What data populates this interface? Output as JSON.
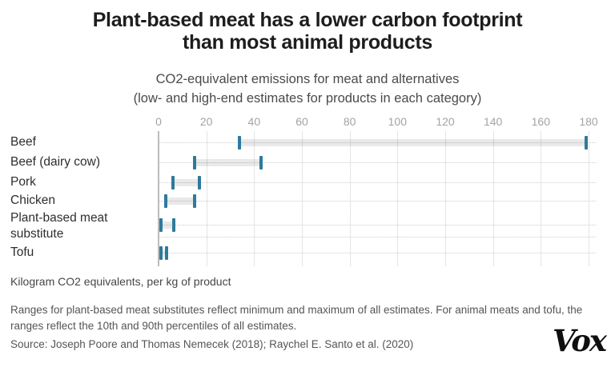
{
  "header": {
    "title_line1": "Plant-based meat has a lower carbon footprint",
    "title_line2": "than most animal products",
    "subtitle_line1": "CO2-equivalent emissions for meat and alternatives",
    "subtitle_line2": "(low- and high-end estimates for products in each category)"
  },
  "chart_data": {
    "type": "bar",
    "variant": "horizontal-range-bar",
    "title": "CO2-equivalent emissions for meat and alternatives",
    "subtitle": "(low- and high-end estimates for products in each category)",
    "categories": [
      "Beef",
      "Beef (dairy cow)",
      "Pork",
      "Chicken",
      "Plant-based meat substitute",
      "Tofu"
    ],
    "points": [
      {
        "category": "Beef",
        "low": 34,
        "high": 179
      },
      {
        "category": "Beef (dairy cow)",
        "low": 15,
        "high": 43
      },
      {
        "category": "Pork",
        "low": 6,
        "high": 17
      },
      {
        "category": "Chicken",
        "low": 3,
        "high": 15
      },
      {
        "category": "Plant-based meat substitute",
        "low": 1,
        "high": 6.5
      },
      {
        "category": "Tofu",
        "low": 1,
        "high": 3.5
      }
    ],
    "xlabel": "Kilogram CO2 equivalents, per kg of product",
    "ylabel": "",
    "axis": {
      "min": 0,
      "max": 180,
      "tick_step": 20,
      "tick_labels": [
        "0",
        "20",
        "40",
        "60",
        "80",
        "100",
        "120",
        "140",
        "160",
        "180"
      ]
    },
    "grid": "vertical solid gridlines every 20; dotted horizontal guide per row",
    "legend_position": "none"
  },
  "footer": {
    "unit_note": "Kilogram CO2 equivalents, per kg of product",
    "methodology_note": "Ranges for plant-based meat substitutes reflect minimum and maximum of all estimates. For animal meats and tofu, the ranges reflect the 10th and 90th percentiles of all estimates.",
    "source": "Source: Joseph Poore and Thomas Nemecek (2018); Raychel E. Santo et al. (2020)",
    "logo_text": "Vox"
  },
  "colors": {
    "range_tick": "#2e7a9c",
    "range_bar": "#e8e8e8",
    "gridline": "#e4e4e4",
    "zero_line": "#bcbcbc",
    "title_text": "#1d1d1d",
    "muted_text": "#555555",
    "axis_label": "#a3a3a3"
  }
}
